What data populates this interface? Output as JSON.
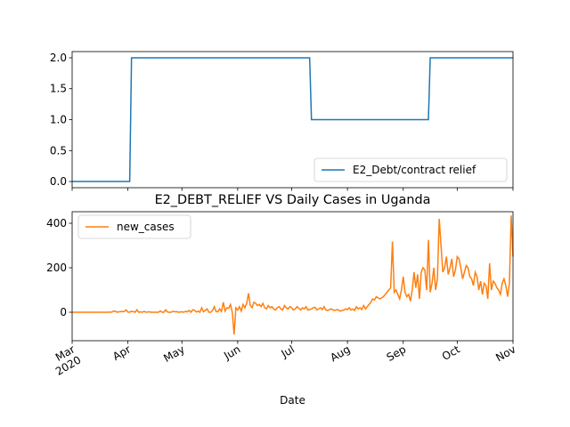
{
  "chart_data": [
    {
      "type": "line",
      "x": [
        0,
        32,
        33,
        132,
        133,
        198,
        199,
        245
      ],
      "series": [
        {
          "name": "E2_Debt/contract relief",
          "color": "#1f77b4",
          "values": [
            0,
            0,
            2,
            2,
            1,
            1,
            2,
            2
          ]
        }
      ],
      "xlim": [
        0,
        245
      ],
      "xticks": [
        0,
        31,
        61,
        92,
        122,
        153,
        184,
        214,
        245
      ],
      "ylim": [
        -0.1,
        2.1
      ],
      "yticks": [
        {
          "value": 0,
          "label": "0.0"
        },
        {
          "value": 0.5,
          "label": "0.5"
        },
        {
          "value": 1,
          "label": "1.0"
        },
        {
          "value": 1.5,
          "label": "1.5"
        },
        {
          "value": 2,
          "label": "2.0"
        }
      ],
      "legend": "lower right"
    },
    {
      "type": "line",
      "title": "E2_DEBT_RELIEF VS Daily Cases in Uganda",
      "xlabel": "Date",
      "series": [
        {
          "name": "new_cases",
          "color": "#ff7f0e",
          "values": [
            0,
            0,
            0,
            0,
            0,
            0,
            0,
            0,
            0,
            0,
            0,
            0,
            0,
            0,
            0,
            0,
            0,
            0,
            0,
            0,
            0,
            1,
            0,
            5,
            5,
            0,
            2,
            3,
            3,
            3,
            11,
            0,
            1,
            4,
            3,
            0,
            11,
            0,
            2,
            0,
            4,
            0,
            1,
            2,
            0,
            0,
            0,
            0,
            0,
            6,
            0,
            0,
            11,
            1,
            0,
            0,
            4,
            2,
            3,
            0,
            1,
            2,
            0,
            4,
            2,
            8,
            0,
            11,
            9,
            1,
            5,
            0,
            20,
            2,
            8,
            15,
            0,
            0,
            8,
            25,
            3,
            2,
            15,
            4,
            45,
            5,
            20,
            18,
            35,
            0,
            -100,
            20,
            10,
            25,
            5,
            35,
            20,
            40,
            85,
            30,
            20,
            45,
            40,
            30,
            35,
            25,
            40,
            20,
            15,
            30,
            20,
            25,
            15,
            10,
            20,
            25,
            15,
            10,
            30,
            20,
            15,
            25,
            20,
            10,
            15,
            25,
            18,
            10,
            20,
            15,
            25,
            10,
            12,
            15,
            20,
            22,
            10,
            15,
            20,
            12,
            25,
            10,
            8,
            12,
            15,
            10,
            8,
            12,
            10,
            5,
            8,
            10,
            15,
            12,
            20,
            10,
            15,
            8,
            25,
            15,
            20,
            12,
            30,
            15,
            25,
            35,
            45,
            60,
            55,
            70,
            65,
            60,
            65,
            70,
            80,
            90,
            100,
            110,
            318,
            90,
            100,
            80,
            60,
            100,
            160,
            90,
            70,
            80,
            50,
            100,
            180,
            110,
            170,
            60,
            180,
            200,
            190,
            100,
            325,
            90,
            130,
            200,
            100,
            150,
            420,
            300,
            180,
            200,
            250,
            170,
            200,
            240,
            160,
            190,
            250,
            240,
            200,
            150,
            180,
            210,
            200,
            160,
            150,
            120,
            180,
            160,
            100,
            140,
            80,
            130,
            120,
            60,
            220,
            100,
            140,
            130,
            110,
            100,
            80,
            130,
            150,
            120,
            70,
            130,
            435,
            250
          ]
        }
      ],
      "xlim": [
        0,
        245
      ],
      "xticks": [
        {
          "value": 0,
          "label": "Mar\n2020"
        },
        {
          "value": 31,
          "label": "Apr"
        },
        {
          "value": 61,
          "label": "May"
        },
        {
          "value": 92,
          "label": "Jun"
        },
        {
          "value": 122,
          "label": "Jul"
        },
        {
          "value": 153,
          "label": "Aug"
        },
        {
          "value": 184,
          "label": "Sep"
        },
        {
          "value": 214,
          "label": "Oct"
        },
        {
          "value": 245,
          "label": "Nov"
        }
      ],
      "ylim": [
        -128,
        452
      ],
      "yticks": [
        0,
        200,
        400
      ],
      "legend": "upper left"
    }
  ]
}
